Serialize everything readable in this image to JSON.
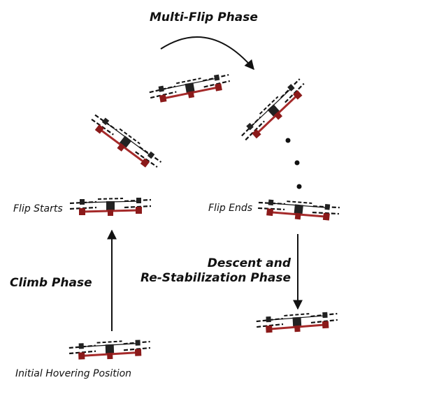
{
  "phases": {
    "multi_flip": "Multi-Flip Phase",
    "climb": "Climb Phase",
    "descent_line1": "Descent and",
    "descent_line2": "Re-Stabilization Phase"
  },
  "events": {
    "flip_starts": "Flip Starts",
    "flip_ends": "Flip  Ends",
    "initial": "Initial Hovering Position"
  },
  "colors": {
    "arm": "#a52a2a",
    "motor": "#8b1a1a",
    "propeller": "#111111",
    "arrow": "#111111"
  },
  "icons": [
    "quadrotor-icon",
    "arrow-icon",
    "continuation-dots-icon"
  ]
}
